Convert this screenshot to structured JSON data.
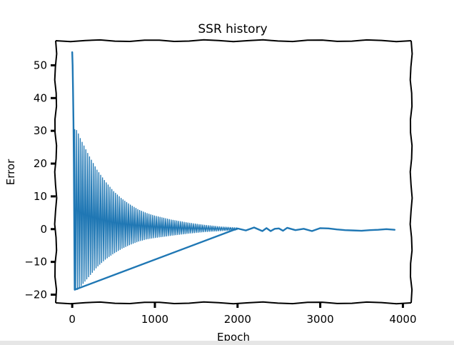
{
  "chart_data": {
    "type": "line",
    "title": "SSR history",
    "xlabel": "Epoch",
    "ylabel": "Error",
    "xlim": [
      -200,
      4100
    ],
    "ylim": [
      -22.5,
      57.5
    ],
    "xticks": [
      0,
      1000,
      2000,
      3000,
      4000
    ],
    "xtick_labels": [
      "0",
      "1000",
      "2000",
      "3000",
      "4000"
    ],
    "yticks": [
      -20,
      -10,
      0,
      10,
      20,
      30,
      40,
      50
    ],
    "ytick_labels": [
      "−20",
      "−10",
      "0",
      "10",
      "20",
      "30",
      "40",
      "50"
    ],
    "grid": false,
    "legend": "none",
    "color": "#1f77b4",
    "series": [
      {
        "kind": "envelope-oscillation",
        "x": [
          0,
          30,
          60,
          100,
          150,
          200,
          300,
          400,
          500,
          600,
          700,
          800,
          900,
          1000,
          1200,
          1400,
          1600,
          1800,
          2000
        ],
        "upper": [
          54,
          30.5,
          30,
          27.5,
          25,
          22.5,
          18,
          14.5,
          11.5,
          9.2,
          7.4,
          5.9,
          4.8,
          4.0,
          2.8,
          1.9,
          1.2,
          0.7,
          0.4
        ],
        "lower": [
          54,
          -18.5,
          -18.5,
          -17.5,
          -16,
          -14.5,
          -11.5,
          -9.2,
          -7.4,
          -5.9,
          -4.7,
          -3.7,
          -3.0,
          -2.6,
          -1.9,
          -1.3,
          -0.8,
          -0.5,
          -0.3
        ]
      },
      {
        "kind": "line",
        "x": [
          0,
          5,
          10,
          15,
          20,
          25,
          30,
          2000,
          2100,
          2200,
          2300,
          2350,
          2400,
          2450,
          2500,
          2550,
          2600,
          2700,
          2800,
          2900,
          3000,
          3100,
          3200,
          3300,
          3400,
          3500,
          3600,
          3700,
          3800,
          3900
        ],
        "y": [
          54,
          50,
          42,
          33,
          20,
          0,
          -18.5,
          0.2,
          -0.4,
          0.5,
          -0.6,
          0.3,
          -0.6,
          0.1,
          0.2,
          -0.5,
          0.4,
          -0.3,
          0.1,
          -0.6,
          0.3,
          0.2,
          -0.1,
          -0.3,
          -0.4,
          -0.5,
          -0.3,
          -0.2,
          0.0,
          -0.2
        ]
      }
    ]
  }
}
